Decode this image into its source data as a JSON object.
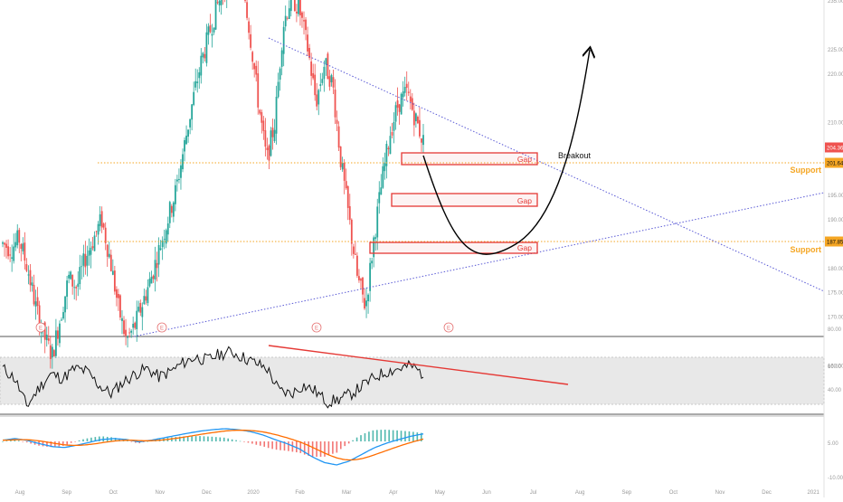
{
  "price_scale": {
    "ticks": [
      {
        "value": 245,
        "label": "245.00"
      },
      {
        "value": 235,
        "label": "235.00"
      },
      {
        "value": 225,
        "label": "225.00"
      },
      {
        "value": 220,
        "label": "220.00"
      },
      {
        "value": 210,
        "label": "210.00"
      },
      {
        "value": 195,
        "label": "195.00"
      },
      {
        "value": 190,
        "label": "190.00"
      },
      {
        "value": 180,
        "label": "180.00"
      },
      {
        "value": 175,
        "label": "175.00"
      },
      {
        "value": 170,
        "label": "170.00"
      },
      {
        "value": 160,
        "label": "160.00"
      }
    ],
    "current_price": "204.36",
    "support_prices": [
      "201.64",
      "187.85"
    ]
  },
  "time_axis": [
    "Aug",
    "Sep",
    "Oct",
    "Nov",
    "Dec",
    "2020",
    "Feb",
    "Mar",
    "Apr",
    "May",
    "Jun",
    "Jul",
    "Aug",
    "Sep",
    "Oct",
    "Nov",
    "Dec",
    "2021"
  ],
  "annotations": {
    "gap_labels": [
      "Gap",
      "Gap",
      "Gap"
    ],
    "breakout": "Breakout",
    "support_labels": [
      "Support",
      "Support"
    ],
    "earnings_marker": "E"
  },
  "rsi_scale": [
    "80.00",
    "60.00",
    "40.00"
  ],
  "macd_scale": [
    "5.00",
    "-10.00"
  ],
  "colors": {
    "up": "#26a69a",
    "down": "#ef5350",
    "trendline": "#5b5bd6",
    "support": "#f5a623",
    "gap": "#e53935",
    "rsi_divergence": "#e53935",
    "macd_line": "#2196f3",
    "signal_line": "#ff6d00"
  },
  "chart_data": {
    "type": "candlestick",
    "price_seed": [
      185,
      184,
      186,
      180,
      172,
      166,
      162,
      170,
      178,
      176,
      182,
      186,
      190,
      182,
      172,
      165,
      168,
      173,
      178,
      184,
      190,
      196,
      205,
      214,
      222,
      228,
      234,
      238,
      244,
      240,
      228,
      214,
      202,
      210,
      230,
      236,
      233,
      225,
      214,
      222,
      218,
      202,
      190,
      178,
      172,
      186,
      198,
      208,
      214,
      216,
      211,
      206
    ],
    "rsi_seed": [
      62,
      55,
      35,
      48,
      58,
      55,
      62,
      60,
      50,
      44,
      52,
      58,
      62,
      56,
      60,
      66,
      70,
      68,
      72,
      74,
      70,
      66,
      62,
      46,
      44,
      50,
      46,
      38,
      40,
      44,
      50,
      56,
      60,
      62,
      64,
      58
    ],
    "macd_seed": [
      0.5,
      1.2,
      0.4,
      -1.0,
      -2.2,
      -2.6,
      -1.6,
      -0.4,
      0.8,
      1.2,
      0.8,
      -0.2,
      0.5,
      1.5,
      2.5,
      3.5,
      4.4,
      5.0,
      5.4,
      5.0,
      4.2,
      2.8,
      0.8,
      -1.0,
      -3.2,
      -6.5,
      -9.0,
      -10.0,
      -8.4,
      -5.6,
      -2.8,
      -0.8,
      0.8,
      2.2,
      3.2
    ]
  }
}
